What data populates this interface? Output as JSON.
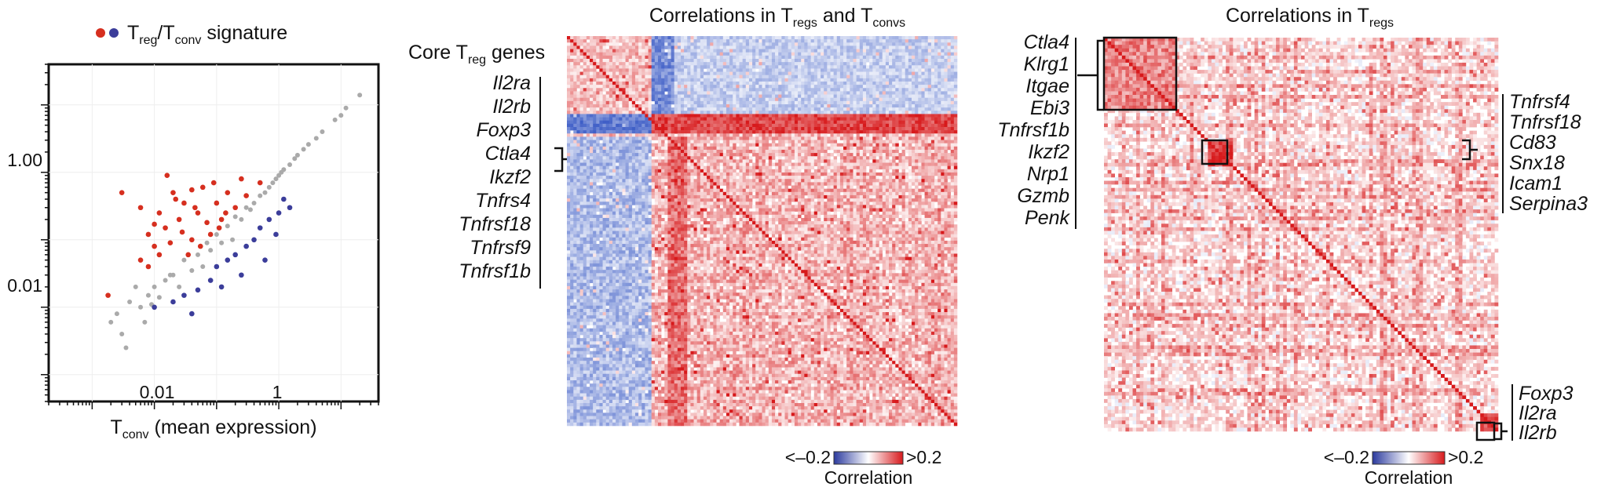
{
  "panel_a": {
    "legend_text": "T",
    "legend_sub1": "reg",
    "legend_mid": "/T",
    "legend_sub2": "conv",
    "legend_tail": " signature",
    "legend_colors": [
      "#d62f1f",
      "#3b3d9a"
    ],
    "xlabel_main": "T",
    "xlabel_sub": "conv",
    "xlabel_tail": " (mean expression)"
  },
  "panel_b": {
    "title_pre": "Correlations in T",
    "title_sub1": "regs",
    "title_mid": " and T",
    "title_sub2": "convs",
    "core_label_pre": "Core T",
    "core_label_sub": "reg",
    "core_label_post": " genes",
    "genes": [
      "Il2ra",
      "Il2rb",
      "Foxp3",
      "Ctla4",
      "Ikzf2",
      "Tnfrs4",
      "Tnfrsf18",
      "Tnfrsf9",
      "Tnfrsf1b"
    ],
    "colorbar": {
      "low": "<–0.2",
      "high": ">0.2",
      "label": "Correlation"
    }
  },
  "panel_c": {
    "title_pre": "Correlations in T",
    "title_sub": "regs",
    "genes_left": [
      "Ctla4",
      "Klrg1",
      "Itgae",
      "Ebi3",
      "Tnfrsf1b",
      "Ikzf2",
      "Nrp1",
      "Gzmb",
      "Penk"
    ],
    "genes_right_top": [
      "Tnfrsf4",
      "Tnfrsf18",
      "Cd83",
      "Snx18",
      "Icam1",
      "Serpina3"
    ],
    "genes_right_bottom": [
      "Foxp3",
      "Il2ra",
      "Il2rb"
    ],
    "colorbar": {
      "low": "<–0.2",
      "high": ">0.2",
      "label": "Correlation"
    }
  },
  "chart_data": [
    {
      "type": "scatter",
      "panel": "a",
      "x_scale": "log",
      "y_scale": "log",
      "xlabel": "Tconv (mean expression)",
      "ylabel": "",
      "x_ticks": [
        "0.01",
        "1"
      ],
      "y_ticks": [
        "0.01",
        "1.00"
      ],
      "xlim": [
        0.0002,
        40
      ],
      "ylim": [
        0.0004,
        40
      ],
      "legend": "Treg/Tconv signature",
      "series": [
        {
          "name": "",
          "color": "#aaaaaa",
          "x": [
            0.0025,
            0.004,
            0.006,
            0.008,
            0.01,
            0.015,
            0.02,
            0.03,
            0.05,
            0.07,
            0.1,
            0.15,
            0.2,
            0.3,
            0.5,
            0.7,
            1,
            1.5,
            2,
            3,
            5,
            8,
            12,
            20,
            0.003,
            0.005,
            0.012,
            0.04,
            0.08,
            0.25,
            0.6,
            0.9,
            1.2,
            2.5,
            0.0035,
            0.007,
            0.018,
            0.06,
            0.18,
            0.4,
            0.8,
            1.8,
            4,
            10,
            0.002,
            0.009,
            0.025,
            0.12,
            0.35,
            1.1
          ],
          "y": [
            0.008,
            0.012,
            0.01,
            0.015,
            0.02,
            0.025,
            0.03,
            0.05,
            0.06,
            0.09,
            0.12,
            0.16,
            0.22,
            0.3,
            0.45,
            0.6,
            0.9,
            1.3,
            1.8,
            2.6,
            4,
            6,
            9,
            14,
            0.004,
            0.02,
            0.014,
            0.035,
            0.07,
            0.2,
            0.5,
            0.8,
            1.1,
            2.2,
            0.0025,
            0.006,
            0.03,
            0.04,
            0.1,
            0.35,
            0.7,
            1.6,
            3.2,
            7,
            0.006,
            0.011,
            0.02,
            0.09,
            0.28,
            1.0
          ]
        },
        {
          "name": "",
          "color": "#d62f1f",
          "x": [
            0.003,
            0.006,
            0.008,
            0.01,
            0.012,
            0.015,
            0.02,
            0.025,
            0.03,
            0.04,
            0.05,
            0.06,
            0.08,
            0.1,
            0.12,
            0.15,
            0.2,
            0.25,
            0.3,
            0.5,
            0.008,
            0.012,
            0.018,
            0.022,
            0.035,
            0.045,
            0.07,
            0.09,
            0.14,
            0.006,
            0.01,
            0.016,
            0.028,
            0.04,
            0.055,
            0.11,
            0.0018
          ],
          "y": [
            0.5,
            0.3,
            0.12,
            0.08,
            0.25,
            0.15,
            0.5,
            0.2,
            0.35,
            0.1,
            0.25,
            0.6,
            0.12,
            0.35,
            0.2,
            0.5,
            0.3,
            0.8,
            0.45,
            0.7,
            0.04,
            0.06,
            0.09,
            0.4,
            0.06,
            0.3,
            0.18,
            0.7,
            0.25,
            0.05,
            0.17,
            0.9,
            0.13,
            0.55,
            0.08,
            0.15,
            0.015
          ]
        },
        {
          "name": "",
          "color": "#3b3d9a",
          "x": [
            0.01,
            0.02,
            0.03,
            0.05,
            0.08,
            0.1,
            0.15,
            0.2,
            0.3,
            0.4,
            0.5,
            0.7,
            1,
            1.5,
            0.25,
            0.6,
            0.9,
            1.2,
            0.04,
            0.12
          ],
          "y": [
            0.01,
            0.012,
            0.015,
            0.018,
            0.025,
            0.04,
            0.05,
            0.06,
            0.08,
            0.1,
            0.15,
            0.2,
            0.25,
            0.3,
            0.03,
            0.05,
            0.12,
            0.4,
            0.008,
            0.02
          ]
        }
      ]
    },
    {
      "type": "heatmap",
      "panel": "b",
      "title": "Correlations in Tregs and Tconvs",
      "color_range": [
        -0.2,
        0.2
      ],
      "colormap": [
        "#3b4cc0",
        "#ffffff",
        "#d7191c"
      ]
    },
    {
      "type": "heatmap",
      "panel": "c",
      "title": "Correlations in Tregs",
      "color_range": [
        -0.2,
        0.2
      ],
      "colormap": [
        "#3b4cc0",
        "#ffffff",
        "#d7191c"
      ]
    }
  ]
}
